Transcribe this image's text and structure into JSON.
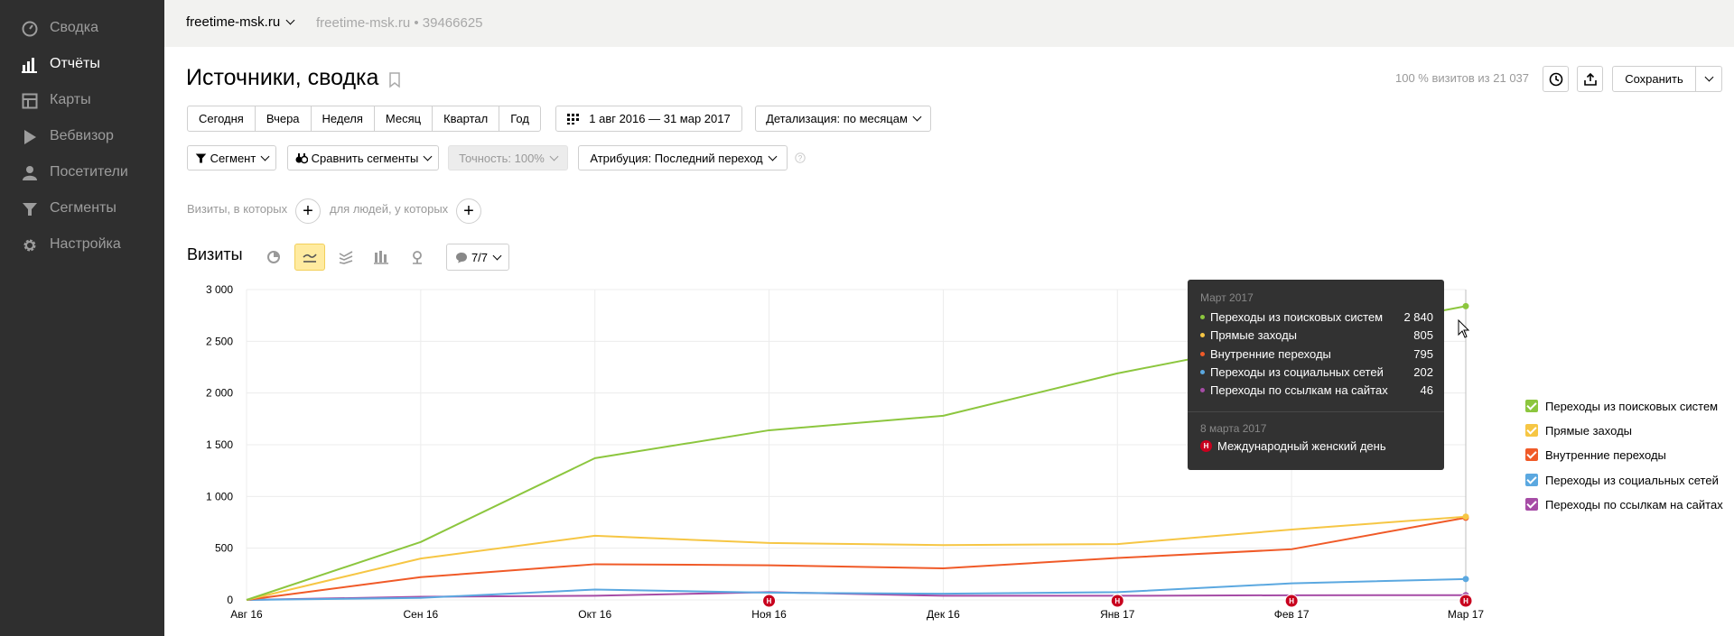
{
  "sidebar": {
    "items": [
      {
        "label": "Сводка",
        "icon": "dashboard-icon",
        "active": false
      },
      {
        "label": "Отчёты",
        "icon": "bar-chart-icon",
        "active": true
      },
      {
        "label": "Карты",
        "icon": "map-icon",
        "active": false
      },
      {
        "label": "Вебвизор",
        "icon": "play-icon",
        "active": false
      },
      {
        "label": "Посетители",
        "icon": "user-icon",
        "active": false
      },
      {
        "label": "Сегменты",
        "icon": "filter-icon",
        "active": false
      },
      {
        "label": "Настройка",
        "icon": "gear-icon",
        "active": false
      }
    ]
  },
  "topbar": {
    "site": "freetime-msk.ru",
    "site_sub": "freetime-msk.ru • 39466625"
  },
  "header": {
    "title": "Источники, сводка",
    "visits_share": "100 % визитов из 21 037",
    "save_label": "Сохранить"
  },
  "periods": [
    "Сегодня",
    "Вчера",
    "Неделя",
    "Месяц",
    "Квартал",
    "Год"
  ],
  "date_range": "1 авг 2016 — 31 мар 2017",
  "detail": "Детализация: по месяцам",
  "filters": {
    "segment": "Сегмент",
    "compare": "Сравнить сегменты",
    "accuracy": "Точность: 100%",
    "attribution": "Атрибуция: Последний переход"
  },
  "conditions": {
    "visits_label": "Визиты, в которых",
    "people_label": "для людей, у которых"
  },
  "chart_header": {
    "title": "Визиты",
    "comments": "7/7"
  },
  "chart_data": {
    "type": "line",
    "categories": [
      "Авг 16",
      "Сен 16",
      "Окт 16",
      "Ноя 16",
      "Дек 16",
      "Янв 17",
      "Фев 17",
      "Мар 17"
    ],
    "yticks": [
      "0",
      "500",
      "1 000",
      "1 500",
      "2 000",
      "2 500",
      "3 000"
    ],
    "ylim": [
      0,
      3000
    ],
    "series": [
      {
        "name": "Переходы из поисковых систем",
        "color": "#8cc63e",
        "values": [
          0,
          560,
          1370,
          1640,
          1780,
          2190,
          2520,
          2840
        ]
      },
      {
        "name": "Прямые заходы",
        "color": "#f6c644",
        "values": [
          0,
          400,
          620,
          550,
          530,
          540,
          680,
          805
        ]
      },
      {
        "name": "Внутренние переходы",
        "color": "#f05a28",
        "values": [
          0,
          220,
          345,
          335,
          305,
          405,
          490,
          795
        ]
      },
      {
        "name": "Переходы из социальных сетей",
        "color": "#5ba8e0",
        "values": [
          0,
          20,
          100,
          70,
          60,
          75,
          160,
          202
        ]
      },
      {
        "name": "Переходы по ссылкам на сайтах",
        "color": "#a64ca6",
        "values": [
          0,
          30,
          40,
          75,
          40,
          40,
          45,
          46
        ]
      }
    ],
    "event_marker": "Н",
    "event_positions": [
      3,
      5,
      6,
      7
    ],
    "grid": true,
    "legend": "right"
  },
  "tooltip": {
    "month": "Март 2017",
    "rows": [
      {
        "name": "Переходы из поисковых систем",
        "value": "2 840",
        "color": "#8cc63e"
      },
      {
        "name": "Прямые заходы",
        "value": "805",
        "color": "#f6c644"
      },
      {
        "name": "Внутренние переходы",
        "value": "795",
        "color": "#f05a28"
      },
      {
        "name": "Переходы из социальных сетей",
        "value": "202",
        "color": "#5ba8e0"
      },
      {
        "name": "Переходы по ссылкам на сайтах",
        "value": "46",
        "color": "#a64ca6"
      }
    ],
    "date": "8 марта 2017",
    "holiday": "Международный женский день"
  }
}
